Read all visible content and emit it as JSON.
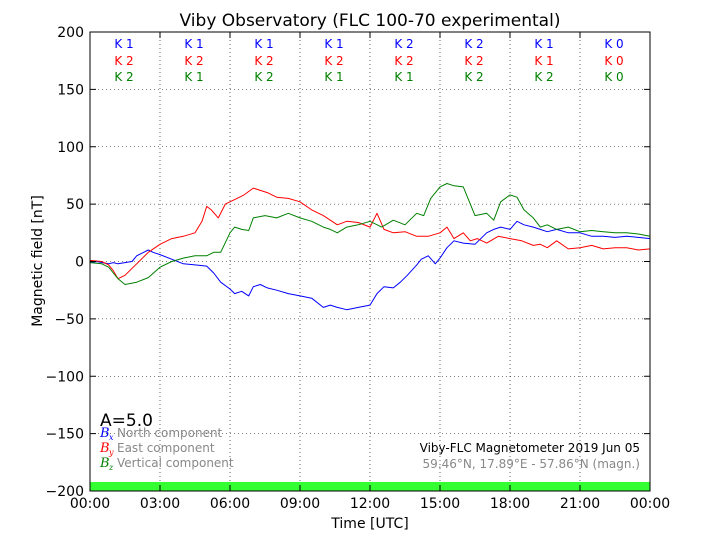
{
  "chart_data": {
    "type": "line",
    "title": "Viby Observatory (FLC 100-70 experimental)",
    "xlabel": "Time [UTC]",
    "ylabel": "Magnetic field [nT]",
    "xlim": [
      0,
      24
    ],
    "ylim": [
      -200,
      200
    ],
    "x_ticks": [
      "00:00",
      "03:00",
      "06:00",
      "09:00",
      "12:00",
      "15:00",
      "18:00",
      "21:00",
      "00:00"
    ],
    "y_ticks": [
      "200",
      "150",
      "100",
      "50",
      "0",
      "−50",
      "−100",
      "−150",
      "−200"
    ],
    "grid": true,
    "activity_index": "A=5.0",
    "colors": {
      "north": "#0000ff",
      "east": "#ff0000",
      "vertical": "#008000",
      "band": "#33ff33"
    },
    "k_indices": {
      "north": [
        "K 1",
        "K 1",
        "K 1",
        "K 1",
        "K 2",
        "K 2",
        "K 1",
        "K 0"
      ],
      "east": [
        "K 2",
        "K 2",
        "K 2",
        "K 2",
        "K 2",
        "K 2",
        "K 1",
        "K 0"
      ],
      "vertical": [
        "K 2",
        "K 1",
        "K 2",
        "K 1",
        "K 1",
        "K 2",
        "K 2",
        "K 0"
      ]
    },
    "legend": [
      {
        "symbol": "B",
        "sub": "x",
        "label": "North component",
        "color": "#0000ff"
      },
      {
        "symbol": "B",
        "sub": "y",
        "label": "East component",
        "color": "#ff0000"
      },
      {
        "symbol": "B",
        "sub": "z",
        "label": "Vertical component",
        "color": "#008000"
      }
    ],
    "info_line1": "Viby-FLC Magnetometer 2019 Jun 05",
    "info_line2": "59.46°N, 17.89°E - 57.86°N (magn.)",
    "series": [
      {
        "name": "North component",
        "x": [
          0,
          0.3,
          0.5,
          0.8,
          1.0,
          1.2,
          1.5,
          1.8,
          2.0,
          2.3,
          2.5,
          2.7,
          3.0,
          3.5,
          4.0,
          4.5,
          5.0,
          5.3,
          5.6,
          6.0,
          6.2,
          6.5,
          6.8,
          7.0,
          7.3,
          7.6,
          8.0,
          8.5,
          9.0,
          9.5,
          10.0,
          10.3,
          10.6,
          11.0,
          11.5,
          12.0,
          12.3,
          12.6,
          13.0,
          13.3,
          13.6,
          14.0,
          14.2,
          14.5,
          14.8,
          15.0,
          15.3,
          15.6,
          16.0,
          16.5,
          17.0,
          17.3,
          17.6,
          18.0,
          18.3,
          18.6,
          19.0,
          19.3,
          19.6,
          20.0,
          20.5,
          21.0,
          21.5,
          22.0,
          22.5,
          23.0,
          23.5,
          24.0
        ],
        "values": [
          -1,
          0,
          -1,
          -2,
          -1,
          -2,
          -1,
          0,
          5,
          8,
          10,
          8,
          6,
          2,
          -2,
          -3,
          -4,
          -10,
          -18,
          -24,
          -28,
          -26,
          -30,
          -22,
          -20,
          -23,
          -25,
          -28,
          -30,
          -32,
          -40,
          -38,
          -40,
          -42,
          -40,
          -38,
          -28,
          -22,
          -23,
          -18,
          -12,
          -3,
          2,
          5,
          -2,
          3,
          12,
          18,
          16,
          15,
          25,
          28,
          30,
          28,
          35,
          32,
          30,
          28,
          26,
          28,
          25,
          25,
          22,
          22,
          21,
          22,
          21,
          20
        ]
      },
      {
        "name": "East component",
        "x": [
          0,
          0.5,
          0.8,
          1.0,
          1.2,
          1.5,
          2.0,
          2.5,
          3.0,
          3.5,
          4.0,
          4.5,
          4.8,
          5.0,
          5.2,
          5.5,
          5.8,
          6.0,
          6.3,
          6.6,
          7.0,
          7.3,
          7.6,
          8.0,
          8.5,
          9.0,
          9.5,
          10.0,
          10.3,
          10.6,
          11.0,
          11.5,
          12.0,
          12.3,
          12.6,
          13.0,
          13.5,
          14.0,
          14.5,
          15.0,
          15.3,
          15.6,
          16.0,
          16.3,
          16.6,
          17.0,
          17.5,
          18.0,
          18.5,
          19.0,
          19.3,
          19.6,
          20.0,
          20.5,
          21.0,
          21.5,
          22.0,
          22.5,
          23.0,
          23.5,
          24.0
        ],
        "values": [
          1,
          0,
          -3,
          -8,
          -15,
          -12,
          -2,
          8,
          15,
          20,
          22,
          25,
          35,
          48,
          45,
          38,
          50,
          52,
          55,
          58,
          64,
          62,
          60,
          56,
          55,
          52,
          45,
          40,
          36,
          32,
          35,
          34,
          30,
          42,
          28,
          25,
          26,
          22,
          22,
          25,
          30,
          20,
          25,
          18,
          20,
          16,
          22,
          20,
          18,
          14,
          15,
          12,
          18,
          11,
          12,
          14,
          11,
          12,
          12,
          10,
          11
        ]
      },
      {
        "name": "Vertical component",
        "x": [
          0,
          0.5,
          0.8,
          1.0,
          1.2,
          1.5,
          2.0,
          2.5,
          3.0,
          3.5,
          4.0,
          4.5,
          5.0,
          5.3,
          5.6,
          6.0,
          6.2,
          6.5,
          6.8,
          7.0,
          7.5,
          8.0,
          8.5,
          9.0,
          9.5,
          10.0,
          10.3,
          10.6,
          11.0,
          11.5,
          12.0,
          12.5,
          13.0,
          13.5,
          14.0,
          14.3,
          14.6,
          15.0,
          15.3,
          15.6,
          16.0,
          16.5,
          17.0,
          17.3,
          17.6,
          18.0,
          18.3,
          18.6,
          19.0,
          19.3,
          19.6,
          20.0,
          20.5,
          21.0,
          21.5,
          22.0,
          22.5,
          23.0,
          23.5,
          24.0
        ],
        "values": [
          -1,
          -2,
          -5,
          -10,
          -15,
          -20,
          -18,
          -14,
          -5,
          0,
          3,
          5,
          5,
          8,
          8,
          25,
          30,
          28,
          27,
          38,
          40,
          38,
          42,
          38,
          35,
          30,
          28,
          25,
          30,
          32,
          35,
          30,
          36,
          32,
          42,
          40,
          55,
          65,
          68,
          66,
          65,
          40,
          42,
          36,
          52,
          58,
          56,
          45,
          38,
          30,
          32,
          28,
          30,
          26,
          27,
          26,
          25,
          25,
          24,
          22
        ]
      }
    ]
  }
}
